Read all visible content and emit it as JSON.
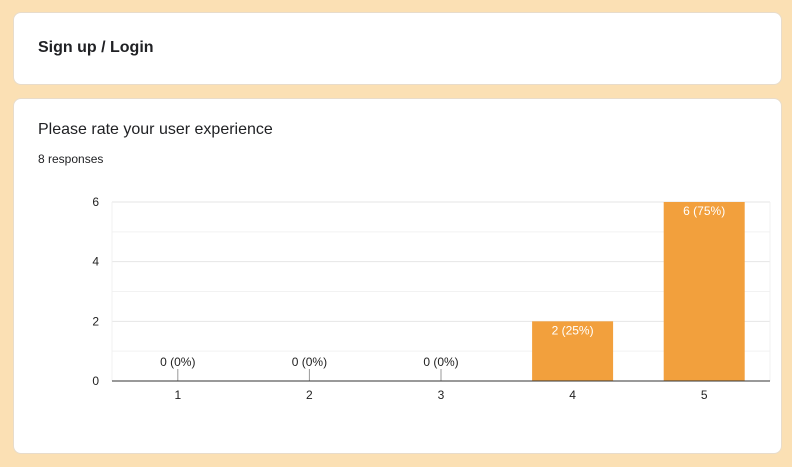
{
  "sections": {
    "title": "Sign up / Login"
  },
  "question": {
    "title": "Please rate your user experience",
    "responses": "8 responses"
  },
  "colors": {
    "bar": "#f2a03d",
    "page_background": "#fbe0b4"
  },
  "chart_data": {
    "type": "bar",
    "categories": [
      "1",
      "2",
      "3",
      "4",
      "5"
    ],
    "values": [
      0,
      0,
      0,
      2,
      6
    ],
    "data_labels": [
      "0 (0%)",
      "0 (0%)",
      "0 (0%)",
      "2 (25%)",
      "6 (75%)"
    ],
    "yticks": [
      0,
      2,
      4,
      6
    ],
    "ylim": [
      0,
      6
    ],
    "grid": true,
    "legend": "none",
    "bar_color": "#f2a03d",
    "title": "",
    "xlabel": "",
    "ylabel": ""
  }
}
